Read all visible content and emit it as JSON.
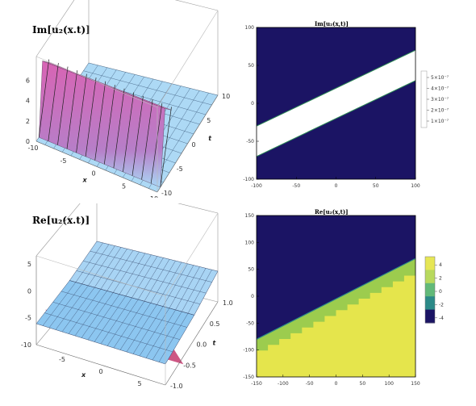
{
  "chart_data": [
    {
      "type": "surface3d",
      "title": "Im[u₂(x.t)]",
      "xlabel": "x",
      "ylabel": "t",
      "x_ticks": [
        "-10",
        "-5",
        "0",
        "5",
        "10"
      ],
      "t_ticks": [
        "-10",
        "-5",
        "0",
        "5",
        "10"
      ],
      "z_ticks": [
        "0",
        "2",
        "4",
        "6"
      ],
      "zlim": [
        0,
        6
      ],
      "colors": {
        "high": "#d864b4",
        "low": "#a9d7f5"
      }
    },
    {
      "type": "contour",
      "title": "Im[u₂(x,t)]",
      "x_ticks": [
        "-100",
        "-50",
        "0",
        "50",
        "100"
      ],
      "y_ticks": [
        "100",
        "50",
        "0",
        "-50",
        "-100"
      ],
      "xlim": [
        -100,
        100
      ],
      "ylim": [
        -100,
        100
      ],
      "band": {
        "top_edge": [
          [
            -100,
            -30
          ],
          [
            100,
            70
          ]
        ],
        "bottom_edge": [
          [
            -100,
            -70
          ],
          [
            100,
            30
          ]
        ]
      },
      "legend": [
        "5×10⁻⁷",
        "4×10⁻⁷",
        "3×10⁻⁷",
        "2×10⁻⁷",
        "1×10⁻⁷"
      ],
      "colors": {
        "fill": "#1b1464",
        "band": "#ffffff",
        "edge": "#2e8b57"
      }
    },
    {
      "type": "surface3d",
      "title": "Re[u₂(x.t)]",
      "xlabel": "x",
      "ylabel": "t",
      "x_ticks": [
        "-5",
        "0",
        "5"
      ],
      "t_ticks": [
        "-1.0",
        "-0.5",
        "0.0",
        "0.5",
        "1.0"
      ],
      "z_ticks": [
        "-10",
        "-5",
        "0",
        "5"
      ],
      "zlim": [
        -10,
        5
      ],
      "colors": {
        "surface": "#8cc6f0",
        "mesh": "#3a4b6e",
        "trough": "#c43a6e"
      }
    },
    {
      "type": "contour",
      "title": "Re[u₂(x,t)]",
      "x_ticks": [
        "-150",
        "-100",
        "-50",
        "0",
        "50",
        "100",
        "150"
      ],
      "y_ticks": [
        "150",
        "100",
        "50",
        "0",
        "-50",
        "-100",
        "-150"
      ],
      "xlim": [
        -150,
        150
      ],
      "ylim": [
        -150,
        150
      ],
      "boundary": [
        [
          -150,
          -80
        ],
        [
          150,
          70
        ]
      ],
      "legend": [
        "4",
        "2",
        "0",
        "-2",
        "-4"
      ],
      "colors": {
        "dark": "#1b1464",
        "green": "#9ccc4e",
        "yellow": "#e5e54c",
        "legend": [
          "#e6e655",
          "#b8d95e",
          "#62b979",
          "#2c8a88",
          "#1b1464"
        ]
      }
    }
  ]
}
